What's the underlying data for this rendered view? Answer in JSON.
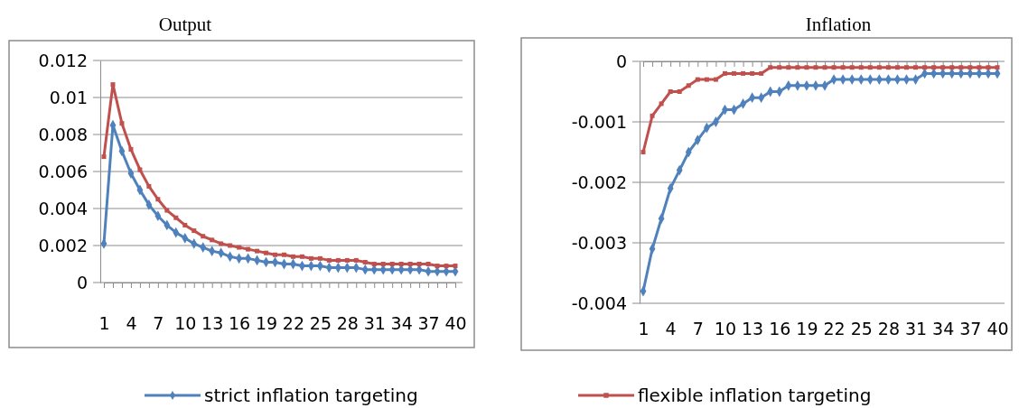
{
  "chart_data": [
    {
      "type": "line",
      "title": "Output",
      "categories": [
        "1",
        null,
        null,
        "4",
        null,
        null,
        "7",
        null,
        null,
        "10",
        null,
        null,
        "13",
        null,
        null,
        "16",
        null,
        null,
        "19",
        null,
        null,
        "22",
        null,
        null,
        "25",
        null,
        null,
        "28",
        null,
        null,
        "31",
        null,
        null,
        "34",
        null,
        null,
        "37",
        null,
        null,
        "40"
      ],
      "series": [
        {
          "name": "strict inflation targeting",
          "color": "#4f81bd",
          "marker": "diamond",
          "values": [
            0.0021,
            0.0085,
            0.0071,
            0.0059,
            0.005,
            0.0042,
            0.0036,
            0.0031,
            0.0027,
            0.0024,
            0.0021,
            0.0019,
            0.0017,
            0.0016,
            0.0014,
            0.0013,
            0.0013,
            0.0012,
            0.0011,
            0.0011,
            0.001,
            0.001,
            0.0009,
            0.0009,
            0.0009,
            0.0008,
            0.0008,
            0.0008,
            0.0008,
            0.0007,
            0.0007,
            0.0007,
            0.0007,
            0.0007,
            0.0007,
            0.0007,
            0.0006,
            0.0006,
            0.0006,
            0.0006
          ]
        },
        {
          "name": "flexible inflation targeting",
          "color": "#c0504d",
          "marker": "square",
          "values": [
            0.0068,
            0.0107,
            0.0086,
            0.0072,
            0.0061,
            0.0052,
            0.0045,
            0.0039,
            0.0035,
            0.0031,
            0.0028,
            0.0025,
            0.0023,
            0.0021,
            0.002,
            0.0019,
            0.0018,
            0.0017,
            0.0016,
            0.0015,
            0.0015,
            0.0014,
            0.0014,
            0.0013,
            0.0013,
            0.0012,
            0.0012,
            0.0012,
            0.0012,
            0.0011,
            0.001,
            0.001,
            0.001,
            0.001,
            0.001,
            0.001,
            0.001,
            0.0009,
            0.0009,
            0.0009
          ]
        }
      ],
      "ylim": [
        0,
        0.012
      ],
      "yticks": [
        0,
        0.002,
        0.004,
        0.006,
        0.008,
        {
          "value": 0.01,
          "label": "0.01"
        },
        0.012
      ],
      "grid": "y",
      "line_style": "solid",
      "legend": "bottom"
    },
    {
      "type": "line",
      "title": "Inflation",
      "categories": [
        "1",
        null,
        null,
        "4",
        null,
        null,
        "7",
        null,
        null,
        "10",
        null,
        null,
        "13",
        null,
        null,
        "16",
        null,
        null,
        "19",
        null,
        null,
        "22",
        null,
        null,
        "25",
        null,
        null,
        "28",
        null,
        null,
        "31",
        null,
        null,
        "34",
        null,
        null,
        "37",
        null,
        null,
        "40"
      ],
      "series": [
        {
          "name": "strict inflation targeting",
          "color": "#4f81bd",
          "marker": "diamond",
          "values": [
            -0.0038,
            -0.0031,
            -0.0026,
            -0.0021,
            -0.0018,
            -0.0015,
            -0.0013,
            -0.0011,
            -0.001,
            -0.0008,
            -0.0008,
            -0.0007,
            -0.0006,
            -0.0006,
            -0.0005,
            -0.0005,
            -0.0004,
            -0.0004,
            -0.0004,
            -0.0004,
            -0.0004,
            -0.0003,
            -0.0003,
            -0.0003,
            -0.0003,
            -0.0003,
            -0.0003,
            -0.0003,
            -0.0003,
            -0.0003,
            -0.0003,
            -0.0002,
            -0.0002,
            -0.0002,
            -0.0002,
            -0.0002,
            -0.0002,
            -0.0002,
            -0.0002,
            -0.0002
          ]
        },
        {
          "name": "flexible inflation targeting",
          "color": "#c0504d",
          "marker": "square",
          "values": [
            -0.0015,
            -0.0009,
            -0.0007,
            -0.0005,
            -0.0005,
            -0.0004,
            -0.0003,
            -0.0003,
            -0.0003,
            -0.0002,
            -0.0002,
            -0.0002,
            -0.0002,
            -0.0002,
            -0.0001,
            -0.0001,
            -0.0001,
            -0.0001,
            -0.0001,
            -0.0001,
            -0.0001,
            -0.0001,
            -0.0001,
            -0.0001,
            -0.0001,
            -0.0001,
            -0.0001,
            -0.0001,
            -0.0001,
            -0.0001,
            -0.0001,
            -0.0001,
            -0.0001,
            -0.0001,
            -0.0001,
            -0.0001,
            -0.0001,
            -0.0001,
            -0.0001,
            -0.0001
          ]
        }
      ],
      "ylim": [
        -0.004,
        0
      ],
      "yticks": [
        -0.004,
        -0.003,
        -0.002,
        -0.001,
        0
      ],
      "grid": "y",
      "line_style": "solid"
    }
  ]
}
